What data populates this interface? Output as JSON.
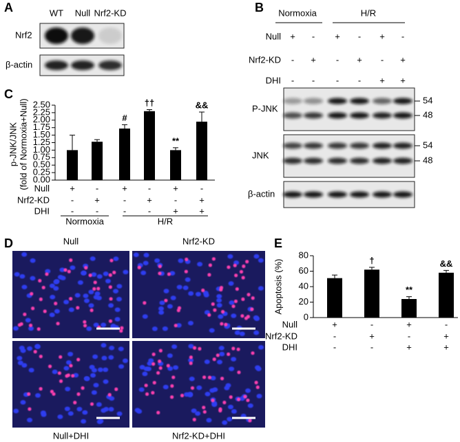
{
  "panel_a": {
    "label": "A",
    "lanes": [
      "WT",
      "Null",
      "Nrf2-KD"
    ],
    "rows": [
      "Nrf2",
      "β-actin"
    ]
  },
  "panel_b": {
    "label": "B",
    "groups": [
      "Normoxia",
      "H/R"
    ],
    "conditions": [
      {
        "name": "Null",
        "signs": [
          "+",
          "-",
          "+",
          "-",
          "+",
          "-"
        ]
      },
      {
        "name": "Nrf2-KD",
        "signs": [
          "-",
          "+",
          "-",
          "+",
          "-",
          "+"
        ]
      },
      {
        "name": "DHI",
        "signs": [
          "-",
          "-",
          "-",
          "-",
          "+",
          "+"
        ]
      }
    ],
    "blots": [
      {
        "name": "P-JNK",
        "markers": [
          54,
          48
        ]
      },
      {
        "name": "JNK",
        "markers": [
          54,
          48
        ]
      },
      {
        "name": "β-actin"
      }
    ]
  },
  "panel_d": {
    "label": "D",
    "images": [
      "Null",
      "Nrf2-KD",
      "Null+DHI",
      "Nrf2-KD+DHI"
    ]
  },
  "chart_data": [
    {
      "type": "bar",
      "panel": "C",
      "y_label": [
        "p-JNK/JNK",
        "(fold of Normoxia+Null)"
      ],
      "color": "#000000",
      "values": [
        1.0,
        1.28,
        1.72,
        2.3,
        1.0,
        1.95
      ],
      "errors": [
        0.5,
        0.07,
        0.13,
        0.05,
        0.08,
        0.32
      ],
      "annotations": [
        null,
        null,
        {
          "text": "#",
          "color": "#000000"
        },
        {
          "text": "††",
          "color": "#888888"
        },
        {
          "text": "**",
          "color": "#000000"
        },
        {
          "text": "&&",
          "color": "#888888"
        }
      ],
      "conditions": [
        {
          "name": "Null",
          "signs": [
            "+",
            "-",
            "+",
            "-",
            "+",
            "-"
          ]
        },
        {
          "name": "Nrf2-KD",
          "signs": [
            "-",
            "+",
            "-",
            "+",
            "-",
            "+"
          ]
        },
        {
          "name": "DHI",
          "signs": [
            "-",
            "-",
            "-",
            "-",
            "+",
            "+"
          ]
        }
      ],
      "groups": [
        "Normoxia",
        "H/R"
      ],
      "ylim": [
        0,
        2.5
      ],
      "yticks": [
        {
          "value": 0,
          "label": "0.00"
        },
        {
          "value": 0.25,
          "label": "0.25"
        },
        {
          "value": 0.5,
          "label": "0.50"
        },
        {
          "value": 0.75,
          "label": "0.75"
        },
        {
          "value": 1,
          "label": "1.00"
        },
        {
          "value": 1.25,
          "label": "1.25"
        },
        {
          "value": 1.5,
          "label": "1.50"
        },
        {
          "value": 1.75,
          "label": "1.75"
        },
        {
          "value": 2,
          "label": "2.00"
        },
        {
          "value": 2.25,
          "label": "2.25"
        },
        {
          "value": 2.5,
          "label": "2.50"
        }
      ]
    },
    {
      "type": "bar",
      "panel": "E",
      "y_label": [
        "Apoptosis (%)"
      ],
      "color": "#000000",
      "values": [
        51,
        62,
        24,
        58
      ],
      "errors": [
        4,
        3,
        3,
        3
      ],
      "annotations": [
        null,
        {
          "text": "†",
          "color": "#888888"
        },
        {
          "text": "**",
          "color": "#000000"
        },
        {
          "text": "&&",
          "color": "#888888"
        }
      ],
      "conditions": [
        {
          "name": "Null",
          "signs": [
            "+",
            "-",
            "+",
            "-"
          ]
        },
        {
          "name": "Nrf2-KD",
          "signs": [
            "-",
            "+",
            "-",
            "+"
          ]
        },
        {
          "name": "DHI",
          "signs": [
            "-",
            "-",
            "+",
            "+"
          ]
        }
      ],
      "ylim": [
        0,
        80
      ],
      "yticks": [
        0,
        20,
        40,
        60,
        80
      ]
    }
  ]
}
